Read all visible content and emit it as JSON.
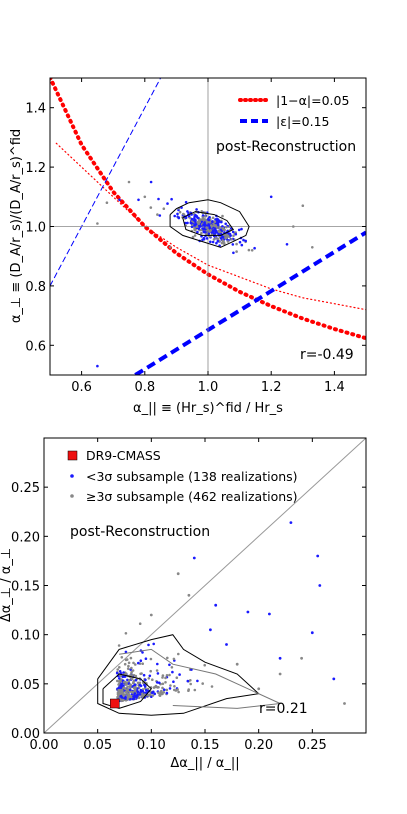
{
  "chart_data": [
    {
      "type": "scatter",
      "xlabel": "α_|| ≡ (Hr_s)^fid / Hr_s",
      "ylabel": "α_⊥ ≡ (D_A/r_s)/(D_A/r_s)^fid",
      "xlim": [
        0.5,
        1.5
      ],
      "ylim": [
        0.5,
        1.5
      ],
      "xticks": [
        "0.6",
        "0.8",
        "1.0",
        "1.2",
        "1.4"
      ],
      "yticks": [
        "0.6",
        "0.8",
        "1.0",
        "1.2",
        "1.4"
      ],
      "grid": false,
      "reference_lines": {
        "x": 1.0,
        "y": 1.0
      },
      "legend_position": "top-right",
      "legend": [
        {
          "label": "|1−α|=0.05",
          "style": "dotted",
          "color": "#ff0000"
        },
        {
          "label": "|ε|=0.15",
          "style": "dashed",
          "color": "#0000ff"
        }
      ],
      "annotations": [
        "post-Reconstruction",
        "r=-0.49"
      ],
      "correlation": -0.49,
      "series": [
        {
          "name": "|1−α|=0.05",
          "kind": "curve",
          "values": [
            [
              0.5,
              1.502
            ],
            [
              0.6,
              1.275
            ],
            [
              0.7,
              1.117
            ],
            [
              0.8,
              1.0
            ],
            [
              0.9,
              0.91
            ],
            [
              1.0,
              0.839
            ],
            [
              1.1,
              0.78
            ],
            [
              1.2,
              0.732
            ],
            [
              1.3,
              0.69
            ],
            [
              1.4,
              0.655
            ],
            [
              1.5,
              0.624
            ]
          ]
        },
        {
          "name": "|1−α|=0.05 (inner)",
          "kind": "curve",
          "values": [
            [
              0.52,
              1.28
            ],
            [
              0.6,
              1.2
            ],
            [
              0.7,
              1.1
            ],
            [
              0.8,
              1.0
            ],
            [
              0.9,
              0.93
            ],
            [
              1.0,
              0.87
            ],
            [
              1.1,
              0.83
            ],
            [
              1.2,
              0.79
            ],
            [
              1.3,
              0.76
            ],
            [
              1.4,
              0.74
            ],
            [
              1.5,
              0.72
            ]
          ]
        },
        {
          "name": "|ε|=0.15",
          "kind": "line",
          "values": [
            [
              0.5,
              0.8
            ],
            [
              0.85,
              1.5
            ]
          ]
        },
        {
          "name": "|ε|=0.15 (lower)",
          "kind": "line",
          "values": [
            [
              0.77,
              0.5
            ],
            [
              1.5,
              0.98
            ]
          ]
        }
      ],
      "outliers": [
        [
          0.65,
          0.53
        ],
        [
          0.65,
          1.01
        ],
        [
          0.68,
          1.08
        ],
        [
          0.72,
          1.09
        ],
        [
          0.75,
          1.15
        ],
        [
          0.8,
          1.1
        ],
        [
          0.82,
          1.15
        ],
        [
          0.84,
          1.04
        ],
        [
          0.86,
          1.06
        ],
        [
          1.25,
          0.94
        ],
        [
          1.3,
          1.07
        ],
        [
          1.33,
          0.93
        ],
        [
          1.2,
          1.1
        ],
        [
          0.88,
          0.93
        ],
        [
          1.14,
          0.92
        ],
        [
          0.78,
          1.09
        ],
        [
          1.27,
          1.0
        ]
      ],
      "cloud_center": [
        1.0,
        1.0
      ]
    },
    {
      "type": "scatter",
      "xlabel": "Δα_|| / α_||",
      "ylabel": "Δα_⊥ / α_⊥",
      "xlim": [
        0.0,
        0.3
      ],
      "ylim": [
        0.0,
        0.3
      ],
      "xticks": [
        "0.00",
        "0.05",
        "0.10",
        "0.15",
        "0.20",
        "0.25"
      ],
      "yticks": [
        "0.00",
        "0.05",
        "0.10",
        "0.15",
        "0.20",
        "0.25"
      ],
      "legend_position": "top-left",
      "legend": [
        {
          "label": "DR9-CMASS",
          "marker": "square",
          "color": "#ee1111"
        },
        {
          "label": "<3σ subsample (138 realizations)",
          "marker": "dot",
          "color": "#1a1aff"
        },
        {
          "label": "≥3σ subsample (462 realizations)",
          "marker": "dot",
          "color": "#888888"
        }
      ],
      "annotations": [
        "post-Reconstruction",
        "r=0.21"
      ],
      "correlation": 0.21,
      "dr9_cmass": {
        "x": 0.066,
        "y": 0.03
      },
      "diagonal": [
        [
          0.0,
          0.0
        ],
        [
          0.3,
          0.3
        ]
      ],
      "blue_outliers": [
        [
          0.23,
          0.214
        ],
        [
          0.255,
          0.18
        ],
        [
          0.257,
          0.15
        ],
        [
          0.14,
          0.178
        ],
        [
          0.19,
          0.123
        ],
        [
          0.21,
          0.121
        ],
        [
          0.25,
          0.102
        ],
        [
          0.16,
          0.13
        ],
        [
          0.27,
          0.055
        ],
        [
          0.22,
          0.076
        ],
        [
          0.17,
          0.09
        ],
        [
          0.155,
          0.105
        ]
      ],
      "gray_outliers": [
        [
          0.125,
          0.162
        ],
        [
          0.135,
          0.14
        ],
        [
          0.1,
          0.12
        ],
        [
          0.24,
          0.076
        ],
        [
          0.28,
          0.03
        ],
        [
          0.2,
          0.045
        ],
        [
          0.18,
          0.07
        ],
        [
          0.22,
          0.06
        ]
      ]
    }
  ]
}
